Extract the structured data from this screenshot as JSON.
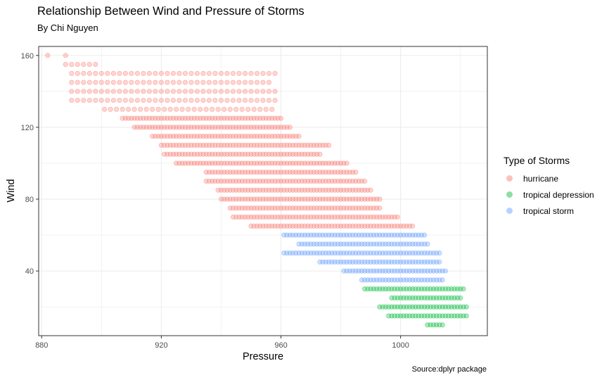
{
  "chart_data": {
    "type": "scatter",
    "title": "Relationship Between Wind and Pressure of Storms",
    "subtitle": "By Chi Nguyen",
    "caption": "Source:dplyr package",
    "xlabel": "Pressure",
    "ylabel": "Wind",
    "xlim": [
      879,
      1029
    ],
    "ylim": [
      4,
      165
    ],
    "x_ticks": [
      880,
      920,
      960,
      1000
    ],
    "y_ticks": [
      40,
      80,
      120,
      160
    ],
    "grid": true,
    "legend_title": "Type of Storms",
    "legend_position": "right",
    "series": [
      {
        "name": "hurricane",
        "color": "#F8766D",
        "bands": [
          {
            "wind": 160,
            "pmin": 882,
            "pmax": 888,
            "step": 6
          },
          {
            "wind": 155,
            "pmin": 888,
            "pmax": 898,
            "step": 2
          },
          {
            "wind": 150,
            "pmin": 890,
            "pmax": 959,
            "step": 2
          },
          {
            "wind": 145,
            "pmin": 890,
            "pmax": 956,
            "step": 2
          },
          {
            "wind": 140,
            "pmin": 890,
            "pmax": 958,
            "step": 2
          },
          {
            "wind": 135,
            "pmin": 890,
            "pmax": 958,
            "step": 2
          },
          {
            "wind": 130,
            "pmin": 901,
            "pmax": 957,
            "step": 2
          },
          {
            "wind": 125,
            "pmin": 907,
            "pmax": 960,
            "step": 1
          },
          {
            "wind": 120,
            "pmin": 911,
            "pmax": 963,
            "step": 1
          },
          {
            "wind": 115,
            "pmin": 917,
            "pmax": 966,
            "step": 1
          },
          {
            "wind": 110,
            "pmin": 920,
            "pmax": 976,
            "step": 1
          },
          {
            "wind": 105,
            "pmin": 921,
            "pmax": 973,
            "step": 1
          },
          {
            "wind": 100,
            "pmin": 925,
            "pmax": 982,
            "step": 1
          },
          {
            "wind": 95,
            "pmin": 935,
            "pmax": 985,
            "step": 1
          },
          {
            "wind": 90,
            "pmin": 935,
            "pmax": 988,
            "step": 1
          },
          {
            "wind": 85,
            "pmin": 939,
            "pmax": 990,
            "step": 1
          },
          {
            "wind": 80,
            "pmin": 940,
            "pmax": 993,
            "step": 1
          },
          {
            "wind": 75,
            "pmin": 943,
            "pmax": 993,
            "step": 1
          },
          {
            "wind": 70,
            "pmin": 944,
            "pmax": 999,
            "step": 1
          },
          {
            "wind": 65,
            "pmin": 950,
            "pmax": 1004,
            "step": 1
          }
        ]
      },
      {
        "name": "tropical depression",
        "color": "#00BA38",
        "bands": [
          {
            "wind": 30,
            "pmin": 988,
            "pmax": 1021,
            "step": 1
          },
          {
            "wind": 25,
            "pmin": 997,
            "pmax": 1020,
            "step": 1
          },
          {
            "wind": 20,
            "pmin": 993,
            "pmax": 1022,
            "step": 1
          },
          {
            "wind": 15,
            "pmin": 996,
            "pmax": 1022,
            "step": 1
          },
          {
            "wind": 10,
            "pmin": 1009,
            "pmax": 1014,
            "step": 1
          }
        ]
      },
      {
        "name": "tropical storm",
        "color": "#619CFF",
        "bands": [
          {
            "wind": 60,
            "pmin": 961,
            "pmax": 1008,
            "step": 1
          },
          {
            "wind": 55,
            "pmin": 966,
            "pmax": 1009,
            "step": 1
          },
          {
            "wind": 50,
            "pmin": 961,
            "pmax": 1013,
            "step": 1
          },
          {
            "wind": 45,
            "pmin": 973,
            "pmax": 1013,
            "step": 1
          },
          {
            "wind": 40,
            "pmin": 981,
            "pmax": 1015,
            "step": 1
          },
          {
            "wind": 35,
            "pmin": 987,
            "pmax": 1014,
            "step": 1
          }
        ]
      }
    ]
  }
}
